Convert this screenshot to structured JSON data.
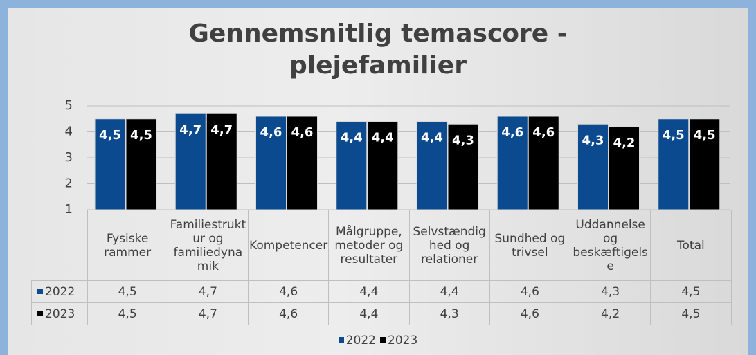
{
  "chart_data": {
    "type": "bar",
    "title": "Gennemsnitlig temascore - plejefamilier",
    "categories": [
      "Fysiske rammer",
      "Familiestruktur og familiedynamik",
      "Kompetencer",
      "Målgruppe, metoder og resultater",
      "Selvstændighed og relationer",
      "Sundhed og trivsel",
      "Uddannelse og beskæftigelse",
      "Total"
    ],
    "series": [
      {
        "name": "2022",
        "color": "#0b4a8f",
        "values": [
          4.5,
          4.7,
          4.6,
          4.4,
          4.4,
          4.6,
          4.3,
          4.5
        ],
        "value_labels": [
          "4,5",
          "4,7",
          "4,6",
          "4,4",
          "4,4",
          "4,6",
          "4,3",
          "4,5"
        ]
      },
      {
        "name": "2023",
        "color": "#000000",
        "values": [
          4.5,
          4.7,
          4.6,
          4.4,
          4.3,
          4.6,
          4.2,
          4.5
        ],
        "value_labels": [
          "4,5",
          "4,7",
          "4,6",
          "4,4",
          "4,3",
          "4,6",
          "4,2",
          "4,5"
        ]
      }
    ],
    "ylim": [
      1,
      5
    ],
    "yticks": [
      1,
      2,
      3,
      4,
      5
    ],
    "grid": true,
    "legend": "bottom",
    "data_table": true
  }
}
